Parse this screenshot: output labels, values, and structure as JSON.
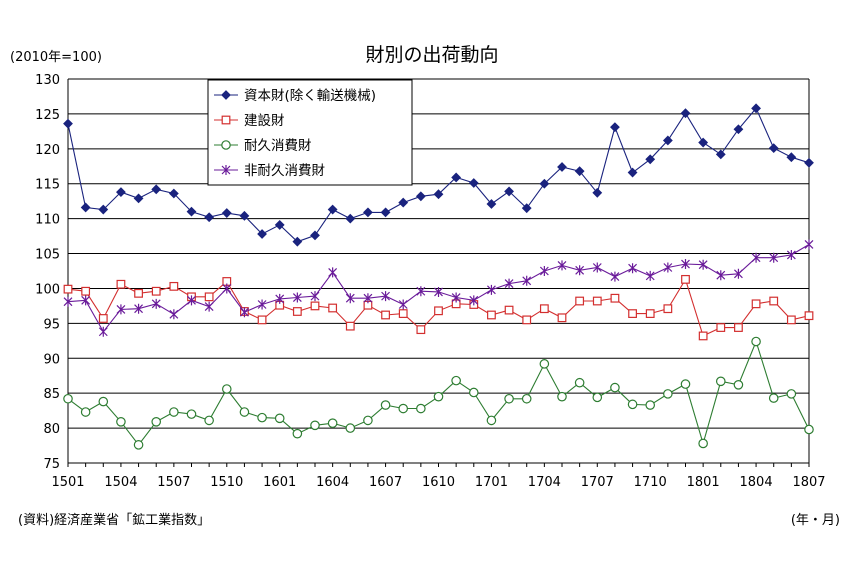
{
  "chart_data": {
    "type": "line",
    "title": "財別の出荷動向",
    "unit_label": "(2010年=100)",
    "xlabel": "(年・月)",
    "source": "(資料)経済産業省「鉱工業指数」",
    "ylim": [
      75,
      130
    ],
    "yticks": [
      75,
      80,
      85,
      90,
      95,
      100,
      105,
      110,
      115,
      120,
      125,
      130
    ],
    "xtick_labels": [
      "1501",
      "1504",
      "1507",
      "1510",
      "1601",
      "1604",
      "1607",
      "1610",
      "1701",
      "1704",
      "1707",
      "1710",
      "1801",
      "1804",
      "1807"
    ],
    "x": [
      "1501",
      "1502",
      "1503",
      "1504",
      "1505",
      "1506",
      "1507",
      "1508",
      "1509",
      "1510",
      "1511",
      "1512",
      "1601",
      "1602",
      "1603",
      "1604",
      "1605",
      "1606",
      "1607",
      "1608",
      "1609",
      "1610",
      "1611",
      "1612",
      "1701",
      "1702",
      "1703",
      "1704",
      "1705",
      "1706",
      "1707",
      "1708",
      "1709",
      "1710",
      "1711",
      "1712",
      "1801",
      "1802",
      "1803",
      "1804",
      "1805",
      "1806",
      "1807"
    ],
    "grid": true,
    "legend_position": "top-left",
    "series": [
      {
        "name": "資本財(除く輸送機械)",
        "color": "#1a237e",
        "marker": "diamond",
        "values": [
          123.6,
          111.6,
          111.3,
          113.8,
          112.9,
          114.2,
          113.6,
          111.0,
          110.2,
          110.8,
          110.4,
          107.8,
          109.1,
          106.7,
          107.6,
          111.3,
          110.0,
          110.9,
          110.9,
          112.3,
          113.2,
          113.5,
          115.9,
          115.1,
          112.1,
          113.9,
          111.5,
          115.0,
          117.4,
          116.8,
          113.7,
          123.1,
          116.6,
          118.5,
          121.2,
          125.1,
          120.9,
          119.2,
          122.8,
          125.8,
          120.1,
          118.8,
          118.0
        ]
      },
      {
        "name": "建設財",
        "color": "#d32f2f",
        "marker": "square",
        "values": [
          99.9,
          99.6,
          95.7,
          100.6,
          99.3,
          99.6,
          100.3,
          98.8,
          98.8,
          101.0,
          96.7,
          95.5,
          97.6,
          96.7,
          97.5,
          97.2,
          94.6,
          97.6,
          96.2,
          96.4,
          94.1,
          96.8,
          97.8,
          97.7,
          96.2,
          96.9,
          95.5,
          97.1,
          95.8,
          98.2,
          98.2,
          98.6,
          96.4,
          96.4,
          97.1,
          101.3,
          93.2,
          94.4,
          94.4,
          97.8,
          98.2,
          95.5,
          96.1
        ]
      },
      {
        "name": "耐久消費財",
        "color": "#2e7d32",
        "marker": "circle",
        "values": [
          84.2,
          82.3,
          83.8,
          80.9,
          77.6,
          80.9,
          82.3,
          82.0,
          81.1,
          85.6,
          82.3,
          81.5,
          81.4,
          79.2,
          80.4,
          80.7,
          80.0,
          81.1,
          83.3,
          82.8,
          82.8,
          84.5,
          86.8,
          85.1,
          81.1,
          84.2,
          84.2,
          89.2,
          84.5,
          86.5,
          84.4,
          85.8,
          83.4,
          83.3,
          84.9,
          86.3,
          77.8,
          86.7,
          86.2,
          92.4,
          84.3,
          84.9,
          79.8
        ]
      },
      {
        "name": "非耐久消費財",
        "color": "#6a1b9a",
        "marker": "star",
        "values": [
          98.1,
          98.3,
          93.8,
          97.0,
          97.1,
          97.8,
          96.3,
          98.3,
          97.4,
          100.0,
          96.6,
          97.7,
          98.5,
          98.7,
          98.9,
          102.3,
          98.6,
          98.6,
          98.9,
          97.7,
          99.6,
          99.5,
          98.7,
          98.3,
          99.8,
          100.7,
          101.1,
          102.5,
          103.3,
          102.6,
          103.0,
          101.7,
          102.9,
          101.8,
          103.0,
          103.5,
          103.4,
          101.9,
          102.1,
          104.4,
          104.4,
          104.8,
          106.3
        ]
      }
    ]
  }
}
